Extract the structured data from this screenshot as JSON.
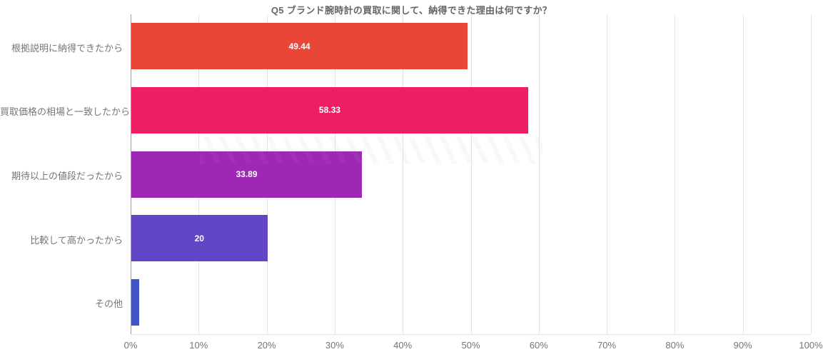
{
  "chart_data": {
    "type": "bar",
    "orientation": "horizontal",
    "title": "Q5 ブランド腕時計の買取に関して、納得できた理由は何ですか？",
    "categories": [
      "根拠説明に納得できたから",
      "買取価格の相場と一致したから",
      "期待以上の値段だったから",
      "比較して高かったから",
      "その他"
    ],
    "values": [
      49.44,
      58.33,
      33.89,
      20,
      1.11
    ],
    "value_labels": [
      "49.44",
      "58.33",
      "33.89",
      "20",
      ""
    ],
    "bar_colors": [
      "#e94638",
      "#ed1e63",
      "#9e28b5",
      "#6147c6",
      "#4355c4"
    ],
    "xlim": [
      0,
      100
    ],
    "x_tick_labels": [
      "0%",
      "10%",
      "20%",
      "30%",
      "40%",
      "50%",
      "60%",
      "70%",
      "80%",
      "90%",
      "100%"
    ],
    "grid": "vertical",
    "legend": "none",
    "xlabel": "",
    "ylabel": "",
    "value_label_color": "#ffffff",
    "category_label_color": "#757575",
    "tick_label_color": "#757575",
    "title_color": "#666666",
    "gridline_color": "#e4e4e4",
    "zero_axis_color": "#9e9e9e",
    "background": "#ffffff"
  }
}
